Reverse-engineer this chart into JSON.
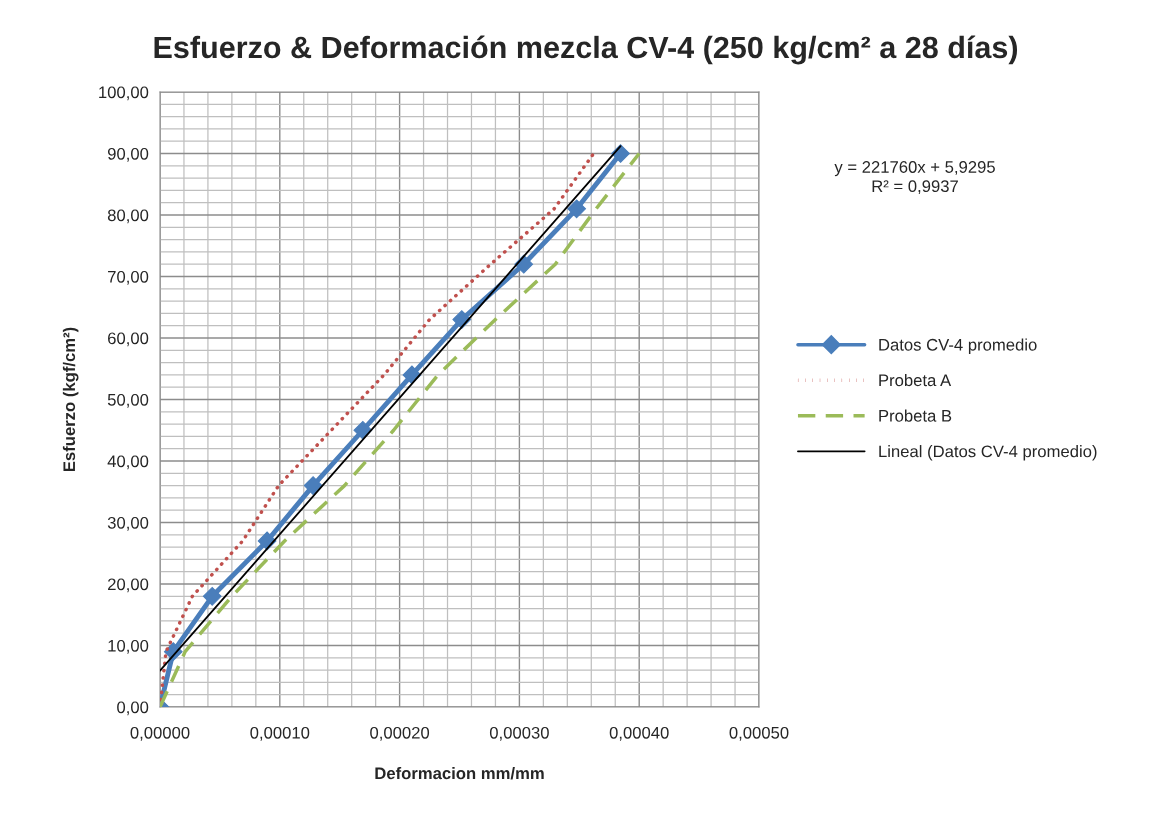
{
  "chart_data": {
    "type": "line",
    "title": "Esfuerzo & Deformación mezcla CV-4 (250 kg/cm² a 28 días)",
    "xlabel": "Deformacion mm/mm",
    "ylabel": "Esfuerzo (kgf/cm²)",
    "annotations": [
      "y = 221760x + 5,9295\nR² = 0,9937"
    ],
    "series": [
      {
        "name": "Datos CV-4 promedio",
        "color": "#4a7ebb",
        "marker": "diamond",
        "line_style": "solid",
        "x": [
          0,
          1.11e-05,
          4.36e-05,
          8.94e-05,
          0.0001278,
          0.0001693,
          0.0002103,
          0.0002519,
          0.0003036,
          0.0003478,
          0.0003844
        ],
        "values": [
          0,
          9,
          18,
          27,
          36,
          45,
          54,
          63,
          72,
          81,
          90
        ]
      },
      {
        "name": "Probeta A",
        "color": "#c0504d",
        "marker": "none",
        "line_style": "dotted",
        "x": [
          0,
          5e-06,
          2.7e-05,
          6.9e-05,
          9.9e-05,
          0.000143,
          0.000187,
          0.000225,
          0.000276,
          0.000329,
          0.000362
        ],
        "values": [
          0,
          9,
          18,
          27,
          36,
          45,
          54,
          63,
          72,
          81,
          90
        ]
      },
      {
        "name": "Probeta B",
        "color": "#9bbb59",
        "marker": "none",
        "line_style": "dashed",
        "x": [
          0,
          2.1e-05,
          6e-05,
          0.000104,
          0.000154,
          0.000195,
          0.000232,
          0.00028,
          0.00033,
          0.000364,
          0.0004
        ],
        "values": [
          0,
          9,
          18,
          27,
          36,
          45,
          54,
          63,
          72,
          81,
          90
        ]
      },
      {
        "name": "Lineal (Datos CV-4 promedio)",
        "color": "#000000",
        "marker": "none",
        "line_style": "solid",
        "x": [
          0,
          0.0003844
        ],
        "values": [
          5.9,
          91.2
        ]
      }
    ],
    "xlim": [
      0,
      0.0005
    ],
    "xticks": [
      {
        "value": 0,
        "label": "0,00000"
      },
      {
        "value": 0.0001,
        "label": "0,00010"
      },
      {
        "value": 0.0002,
        "label": "0,00020"
      },
      {
        "value": 0.0003,
        "label": "0,00030"
      },
      {
        "value": 0.0004,
        "label": "0,00040"
      },
      {
        "value": 0.0005,
        "label": "0,00050"
      }
    ],
    "ylim": [
      0,
      100
    ],
    "yticks": [
      {
        "value": 0,
        "label": "0,00"
      },
      {
        "value": 10,
        "label": "10,00"
      },
      {
        "value": 20,
        "label": "20,00"
      },
      {
        "value": 30,
        "label": "30,00"
      },
      {
        "value": 40,
        "label": "40,00"
      },
      {
        "value": 50,
        "label": "50,00"
      },
      {
        "value": 60,
        "label": "60,00"
      },
      {
        "value": 70,
        "label": "70,00"
      },
      {
        "value": 80,
        "label": "80,00"
      },
      {
        "value": 90,
        "label": "90,00"
      },
      {
        "value": 100,
        "label": "100,00"
      }
    ],
    "grid": true,
    "legend": "right"
  }
}
